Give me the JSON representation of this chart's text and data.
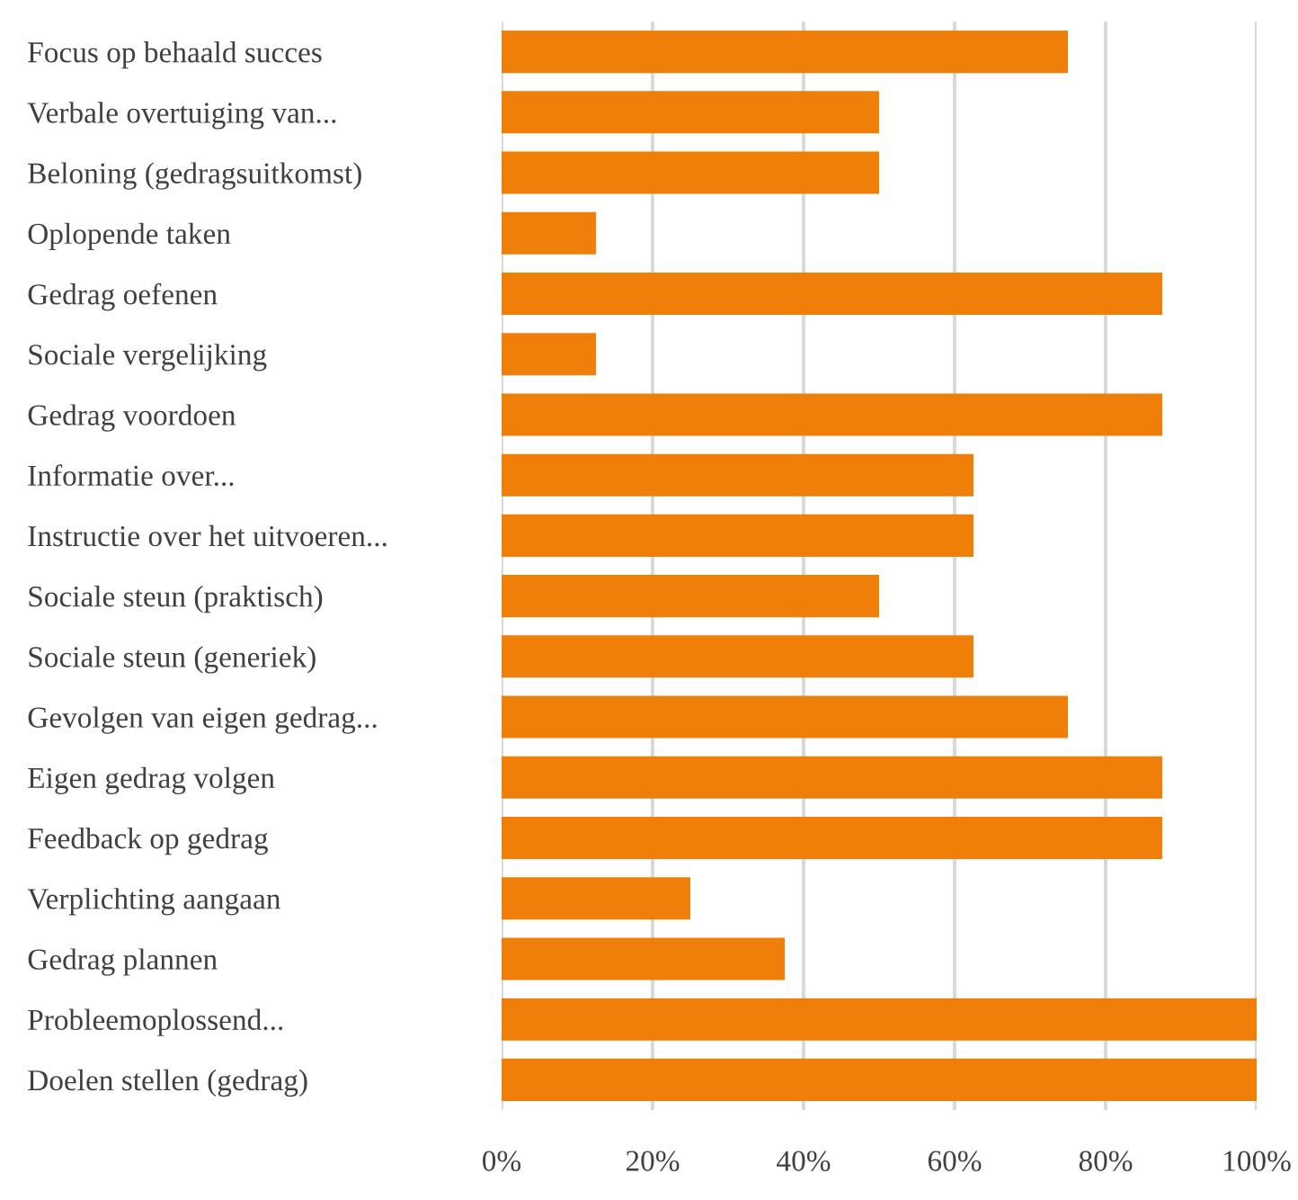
{
  "chart_data": {
    "type": "bar",
    "orientation": "horizontal",
    "categories": [
      "Focus op behaald succes",
      "Verbale overtuiging van...",
      "Beloning (gedragsuitkomst)",
      "Oplopende taken",
      "Gedrag oefenen",
      "Sociale vergelijking",
      "Gedrag voordoen",
      "Informatie over...",
      "Instructie over het uitvoeren...",
      "Sociale steun (praktisch)",
      "Sociale steun (generiek)",
      "Gevolgen van eigen gedrag...",
      "Eigen gedrag volgen",
      "Feedback op gedrag",
      "Verplichting aangaan",
      "Gedrag plannen",
      "Probleemoplossend...",
      "Doelen stellen (gedrag)"
    ],
    "values": [
      75,
      50,
      50,
      12.5,
      87.5,
      12.5,
      87.5,
      62.5,
      62.5,
      50,
      62.5,
      75,
      87.5,
      87.5,
      25,
      37.5,
      100,
      100
    ],
    "color": "#f07f09",
    "xlim": [
      0,
      100
    ],
    "xticks": [
      {
        "value": 0,
        "label": "0%"
      },
      {
        "value": 20,
        "label": "20%"
      },
      {
        "value": 40,
        "label": "40%"
      },
      {
        "value": 60,
        "label": "60%"
      },
      {
        "value": 80,
        "label": "80%"
      },
      {
        "value": 100,
        "label": "100%"
      }
    ],
    "grid": "x"
  }
}
